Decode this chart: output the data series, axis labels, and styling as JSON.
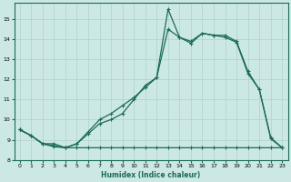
{
  "xlabel": "Humidex (Indice chaleur)",
  "bg_color": "#cce8e4",
  "line_color": "#1a6b5a",
  "grid_color": "#aed0cc",
  "xlim": [
    -0.5,
    23.5
  ],
  "ylim": [
    8.0,
    15.8
  ],
  "yticks": [
    8,
    9,
    10,
    11,
    12,
    13,
    14,
    15
  ],
  "xticks": [
    0,
    1,
    2,
    3,
    4,
    5,
    6,
    7,
    8,
    9,
    10,
    11,
    12,
    13,
    14,
    15,
    16,
    17,
    18,
    19,
    20,
    21,
    22,
    23
  ],
  "series1_x": [
    0,
    1,
    2,
    3,
    4,
    5,
    6,
    7,
    8,
    9,
    10,
    11,
    12,
    13,
    14,
    15,
    16,
    17,
    18,
    19,
    20,
    21,
    22,
    23
  ],
  "series1_y": [
    9.5,
    9.2,
    8.8,
    8.8,
    8.6,
    8.8,
    9.3,
    9.8,
    10.0,
    10.3,
    11.0,
    11.7,
    12.1,
    15.5,
    14.1,
    13.9,
    14.3,
    14.2,
    14.2,
    13.9,
    12.4,
    11.5,
    9.1,
    8.6
  ],
  "series2_x": [
    0,
    1,
    2,
    3,
    4,
    5,
    6,
    7,
    8,
    9,
    10,
    11,
    12,
    13,
    14,
    15,
    16,
    17,
    18,
    19,
    20,
    21,
    22,
    23
  ],
  "series2_y": [
    9.5,
    9.2,
    8.8,
    8.7,
    8.6,
    8.8,
    9.4,
    10.0,
    10.3,
    10.7,
    11.1,
    11.6,
    12.1,
    14.5,
    14.1,
    13.8,
    14.3,
    14.2,
    14.1,
    13.85,
    12.3,
    11.5,
    9.05,
    8.6
  ],
  "series3_x": [
    0,
    1,
    2,
    3,
    4,
    5,
    6,
    7,
    8,
    9,
    10,
    11,
    12,
    13,
    14,
    15,
    16,
    17,
    18,
    19,
    20,
    21,
    22,
    23
  ],
  "series3_y": [
    9.5,
    9.2,
    8.8,
    8.65,
    8.6,
    8.6,
    8.6,
    8.6,
    8.6,
    8.6,
    8.6,
    8.6,
    8.6,
    8.6,
    8.6,
    8.6,
    8.6,
    8.6,
    8.6,
    8.6,
    8.6,
    8.6,
    8.6,
    8.6
  ]
}
